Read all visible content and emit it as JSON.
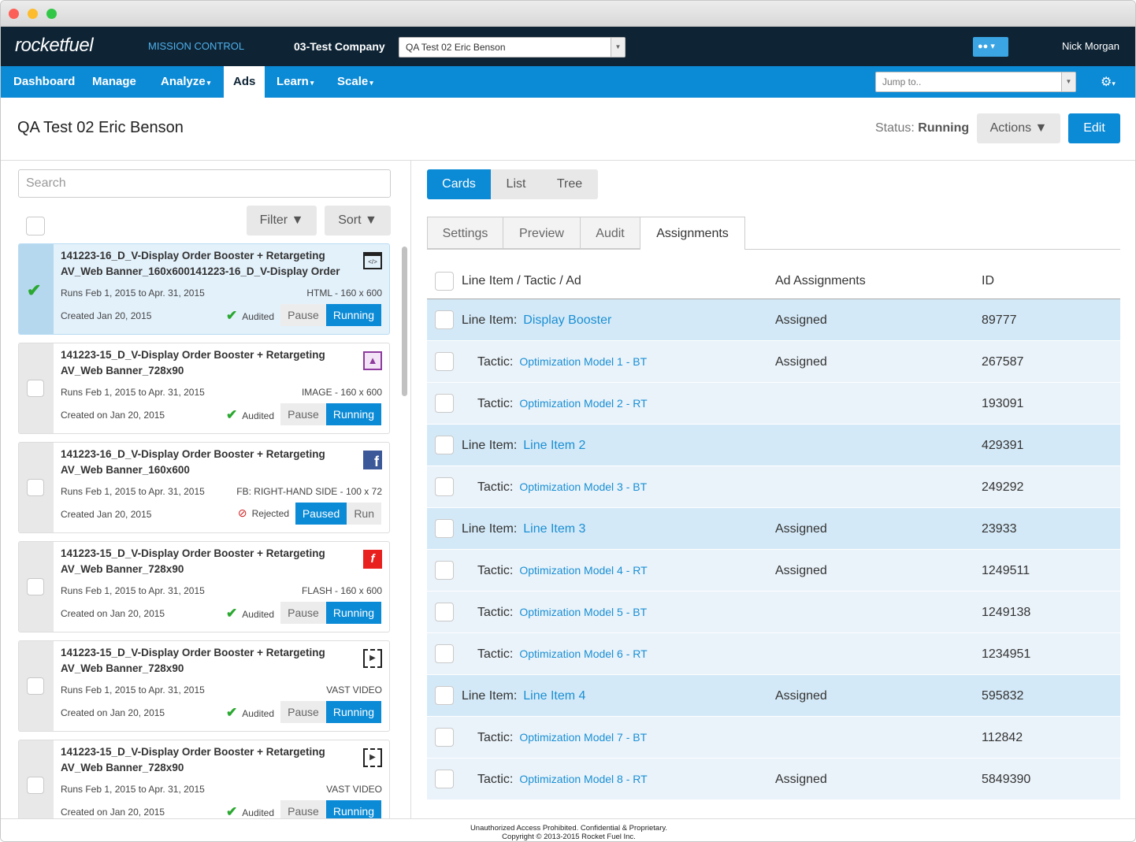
{
  "header": {
    "logo": "rocketfuel",
    "app_name": "MISSION CONTROL",
    "company": "03-Test Company",
    "campaign_select": "QA Test 02 Eric Benson",
    "user": "Nick Morgan"
  },
  "nav": {
    "items": [
      "Dashboard",
      "Manage",
      "Analyze",
      "Ads",
      "Learn",
      "Scale"
    ],
    "dropdown": [
      false,
      false,
      true,
      false,
      true,
      true
    ],
    "active": 3,
    "jump_placeholder": "Jump to.."
  },
  "page": {
    "title": "QA Test 02 Eric Benson",
    "status_label": "Status:",
    "status": "Running",
    "actions": "Actions",
    "edit": "Edit"
  },
  "left": {
    "search_placeholder": "Search",
    "filter": "Filter",
    "sort": "Sort",
    "cards": [
      {
        "title_line1": "141223-16_D_V-Display Order Booster + Retargeting",
        "title_line2": "AV_Web Banner_160x600141223-16_D_V-Display Order",
        "runs": "Runs Feb 1, 2015 to Apr. 31, 2015",
        "format": "HTML - 160 x 600",
        "created": "Created Jan 20, 2015",
        "audit": "Audited",
        "audited": true,
        "buttons": [
          "Pause",
          "Running"
        ],
        "active": 1,
        "checked": true,
        "icon": "html"
      },
      {
        "title_line1": "141223-15_D_V-Display Order Booster + Retargeting",
        "title_line2": "AV_Web Banner_728x90",
        "runs": "Runs Feb 1, 2015 to Apr. 31, 2015",
        "format": "IMAGE - 160 x 600",
        "created": "Created on Jan 20, 2015",
        "audit": "Audited",
        "audited": true,
        "buttons": [
          "Pause",
          "Running"
        ],
        "active": 1,
        "checked": false,
        "icon": "image"
      },
      {
        "title_line1": "141223-16_D_V-Display Order Booster + Retargeting",
        "title_line2": "AV_Web Banner_160x600",
        "runs": "Runs Feb 1, 2015 to Apr. 31, 2015",
        "format": "FB: RIGHT-HAND SIDE - 100 x 72",
        "created": "Created Jan 20, 2015",
        "audit": "Rejected",
        "audited": false,
        "buttons": [
          "Paused",
          "Run"
        ],
        "active": 0,
        "checked": false,
        "icon": "facebook"
      },
      {
        "title_line1": "141223-15_D_V-Display Order Booster + Retargeting",
        "title_line2": "AV_Web Banner_728x90",
        "runs": "Runs Feb 1, 2015 to Apr. 31, 2015",
        "format": "FLASH - 160 x 600",
        "created": "Created on Jan 20, 2015",
        "audit": "Audited",
        "audited": true,
        "buttons": [
          "Pause",
          "Running"
        ],
        "active": 1,
        "checked": false,
        "icon": "flash"
      },
      {
        "title_line1": "141223-15_D_V-Display Order Booster + Retargeting",
        "title_line2": "AV_Web Banner_728x90",
        "runs": "Runs Feb 1, 2015 to Apr. 31, 2015",
        "format": "VAST VIDEO",
        "created": "Created on Jan 20, 2015",
        "audit": "Audited",
        "audited": true,
        "buttons": [
          "Pause",
          "Running"
        ],
        "active": 1,
        "checked": false,
        "icon": "video"
      },
      {
        "title_line1": "141223-15_D_V-Display Order Booster + Retargeting",
        "title_line2": "AV_Web Banner_728x90",
        "runs": "Runs Feb 1, 2015 to Apr. 31, 2015",
        "format": "VAST VIDEO",
        "created": "Created on Jan 20, 2015",
        "audit": "Audited",
        "audited": true,
        "buttons": [
          "Pause",
          "Running"
        ],
        "active": 1,
        "checked": false,
        "icon": "video"
      }
    ]
  },
  "right": {
    "view_tabs": [
      "Cards",
      "List",
      "Tree"
    ],
    "view_active": 0,
    "tabs": [
      "Settings",
      "Preview",
      "Audit",
      "Assignments"
    ],
    "tab_active": 3,
    "table": {
      "columns": [
        "Line Item / Tactic / Ad",
        "Ad Assignments",
        "ID"
      ],
      "rows": [
        {
          "kind": "Line Item:",
          "name": "Display Booster",
          "assignment": "Assigned",
          "id": 89777,
          "level": 0
        },
        {
          "kind": "Tactic:",
          "name": "Optimization Model 1 - BT",
          "assignment": "Assigned",
          "id": 267587,
          "level": 1
        },
        {
          "kind": "Tactic:",
          "name": "Optimization Model 2 - RT",
          "assignment": null,
          "id": 193091,
          "level": 1
        },
        {
          "kind": "Line Item:",
          "name": "Line Item 2",
          "assignment": null,
          "id": 429391,
          "level": 0
        },
        {
          "kind": "Tactic:",
          "name": "Optimization Model 3 - BT",
          "assignment": null,
          "id": 249292,
          "level": 1
        },
        {
          "kind": "Line Item:",
          "name": "Line Item 3",
          "assignment": "Assigned",
          "id": 23933,
          "level": 0
        },
        {
          "kind": "Tactic:",
          "name": "Optimization Model 4 - RT",
          "assignment": "Assigned",
          "id": 1249511,
          "level": 1
        },
        {
          "kind": "Tactic:",
          "name": "Optimization Model 5 - BT",
          "assignment": null,
          "id": 1249138,
          "level": 1
        },
        {
          "kind": "Tactic:",
          "name": "Optimization Model 6 - RT",
          "assignment": null,
          "id": 1234951,
          "level": 1
        },
        {
          "kind": "Line Item:",
          "name": "Line Item 4",
          "assignment": "Assigned",
          "id": 595832,
          "level": 0
        },
        {
          "kind": "Tactic:",
          "name": "Optimization Model 7 - BT",
          "assignment": null,
          "id": 112842,
          "level": 1
        },
        {
          "kind": "Tactic:",
          "name": "Optimization Model 8 - RT",
          "assignment": "Assigned",
          "id": 5849390,
          "level": 1
        }
      ]
    }
  },
  "footer": {
    "line1": "Unauthorized Access Prohibited. Confidential & Proprietary.",
    "line2": "Copyright © 2013-2015 Rocket Fuel Inc."
  }
}
